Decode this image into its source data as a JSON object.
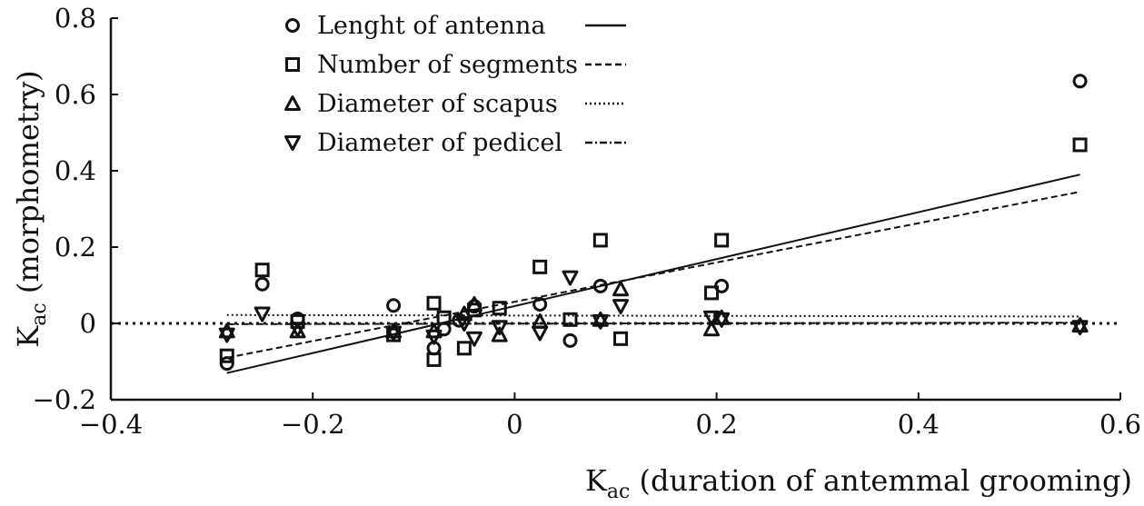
{
  "chart_data": {
    "type": "scatter",
    "title": "",
    "xlabel": {
      "main": "K",
      "sub": "ac",
      "rest": " (duration of antemmal grooming)"
    },
    "ylabel": {
      "main": "K",
      "sub": "ac",
      "rest": " (morphometry)"
    },
    "xlim": [
      -0.4,
      0.6
    ],
    "ylim": [
      -0.2,
      0.8
    ],
    "xticks": [
      -0.4,
      -0.2,
      0,
      0.2,
      0.4,
      0.6
    ],
    "yticks": [
      -0.2,
      0,
      0.2,
      0.4,
      0.6,
      0.8
    ],
    "xtick_labels": [
      "−0.4",
      "−0.2",
      "0",
      "0.2",
      "0.4",
      "0.6"
    ],
    "ytick_labels": [
      "−0.2",
      "0",
      "0.2",
      "0.4",
      "0.6",
      "0.8"
    ],
    "grid": false,
    "legend_position": "top-center",
    "zero_line": {
      "y": 0,
      "style": "dotted"
    },
    "series": [
      {
        "name": "Lenght of antenna",
        "marker": "circle",
        "line_style": "solid",
        "fit": {
          "x": [
            -0.285,
            0.56
          ],
          "y": [
            -0.13,
            0.39
          ]
        },
        "points": [
          [
            -0.285,
            -0.105
          ],
          [
            -0.25,
            0.103
          ],
          [
            -0.215,
            0.012
          ],
          [
            -0.12,
            0.047
          ],
          [
            -0.08,
            -0.065
          ],
          [
            -0.07,
            -0.015
          ],
          [
            -0.055,
            0.008
          ],
          [
            -0.04,
            0.045
          ],
          [
            0.025,
            0.05
          ],
          [
            0.055,
            -0.045
          ],
          [
            0.085,
            0.098
          ],
          [
            0.205,
            0.098
          ],
          [
            0.56,
            0.635
          ]
        ]
      },
      {
        "name": "Number of segments",
        "marker": "square",
        "line_style": "dashed",
        "fit": {
          "x": [
            -0.285,
            0.56
          ],
          "y": [
            -0.09,
            0.345
          ]
        },
        "points": [
          [
            -0.285,
            -0.085
          ],
          [
            -0.25,
            0.14
          ],
          [
            -0.215,
            0.005
          ],
          [
            -0.12,
            -0.03
          ],
          [
            -0.08,
            -0.095
          ],
          [
            -0.08,
            0.053
          ],
          [
            -0.07,
            0.015
          ],
          [
            -0.05,
            -0.065
          ],
          [
            -0.04,
            0.035
          ],
          [
            -0.015,
            0.04
          ],
          [
            0.025,
            0.148
          ],
          [
            0.055,
            0.01
          ],
          [
            0.085,
            0.218
          ],
          [
            0.105,
            -0.04
          ],
          [
            0.195,
            0.08
          ],
          [
            0.205,
            0.218
          ],
          [
            0.56,
            0.468
          ]
        ]
      },
      {
        "name": "Diameter of scapus",
        "marker": "triangle-up",
        "line_style": "dotted",
        "fit": {
          "x": [
            -0.285,
            0.56
          ],
          "y": [
            0.022,
            0.018
          ]
        },
        "points": [
          [
            -0.285,
            -0.02
          ],
          [
            -0.215,
            -0.02
          ],
          [
            -0.12,
            -0.02
          ],
          [
            -0.08,
            -0.02
          ],
          [
            -0.05,
            0.025
          ],
          [
            -0.04,
            0.05
          ],
          [
            -0.015,
            -0.03
          ],
          [
            0.025,
            0.005
          ],
          [
            0.085,
            0.01
          ],
          [
            0.105,
            0.09
          ],
          [
            0.195,
            -0.015
          ],
          [
            0.205,
            0.015
          ],
          [
            0.56,
            -0.005
          ]
        ]
      },
      {
        "name": "Diameter of pedicel",
        "marker": "triangle-down",
        "line_style": "dashdot",
        "fit": {
          "x": [
            -0.285,
            0.56
          ],
          "y": [
            -0.002,
            0.002
          ]
        },
        "points": [
          [
            -0.285,
            -0.03
          ],
          [
            -0.25,
            0.025
          ],
          [
            -0.215,
            -0.015
          ],
          [
            -0.12,
            -0.025
          ],
          [
            -0.08,
            -0.035
          ],
          [
            -0.05,
            0.0
          ],
          [
            -0.04,
            -0.04
          ],
          [
            -0.015,
            -0.01
          ],
          [
            0.025,
            -0.025
          ],
          [
            0.055,
            0.12
          ],
          [
            0.085,
            0.005
          ],
          [
            0.105,
            0.045
          ],
          [
            0.195,
            0.015
          ],
          [
            0.205,
            0.01
          ],
          [
            0.56,
            -0.01
          ]
        ]
      }
    ]
  }
}
